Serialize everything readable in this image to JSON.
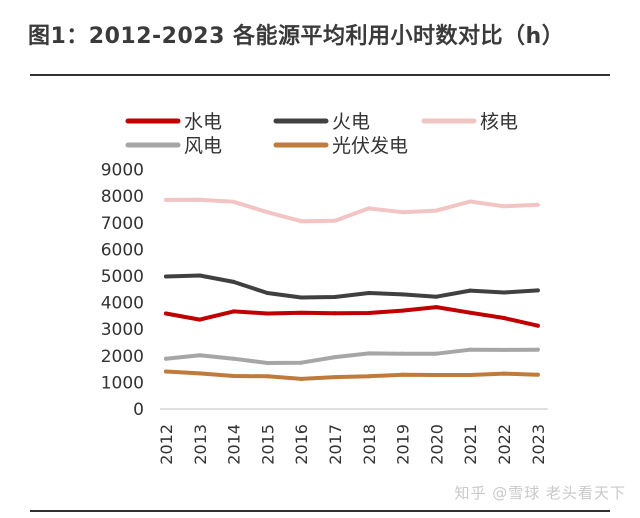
{
  "page": {
    "title": "图1：2012-2023 各能源平均利用小时数对比（h）",
    "watermark": "知乎 @雪球 老头看天下"
  },
  "chart_data": {
    "type": "line",
    "title": "图1：2012-2023 各能源平均利用小时数对比（h）",
    "xlabel": "",
    "ylabel": "",
    "ylim": [
      0,
      9000
    ],
    "yticks": [
      0,
      1000,
      2000,
      3000,
      4000,
      5000,
      6000,
      7000,
      8000,
      9000
    ],
    "grid": false,
    "legend_position": "top",
    "categories": [
      "2012",
      "2013",
      "2014",
      "2015",
      "2016",
      "2017",
      "2018",
      "2019",
      "2020",
      "2021",
      "2022",
      "2023"
    ],
    "series": [
      {
        "name": "水电",
        "color": "#c00000",
        "values": [
          3590,
          3360,
          3670,
          3590,
          3620,
          3600,
          3610,
          3700,
          3830,
          3620,
          3420,
          3130
        ]
      },
      {
        "name": "火电",
        "color": "#404040",
        "values": [
          4980,
          5020,
          4780,
          4360,
          4190,
          4210,
          4360,
          4310,
          4220,
          4450,
          4380,
          4460
        ]
      },
      {
        "name": "核电",
        "color": "#f2c4c4",
        "values": [
          7860,
          7870,
          7790,
          7400,
          7060,
          7080,
          7540,
          7400,
          7460,
          7800,
          7620,
          7680
        ]
      },
      {
        "name": "风电",
        "color": "#a6a6a6",
        "values": [
          1890,
          2020,
          1890,
          1730,
          1740,
          1950,
          2090,
          2080,
          2080,
          2230,
          2220,
          2230
        ]
      },
      {
        "name": "光伏发电",
        "color": "#c07a3a",
        "values": [
          1410,
          1340,
          1240,
          1230,
          1130,
          1200,
          1230,
          1290,
          1280,
          1280,
          1330,
          1290
        ]
      }
    ]
  }
}
